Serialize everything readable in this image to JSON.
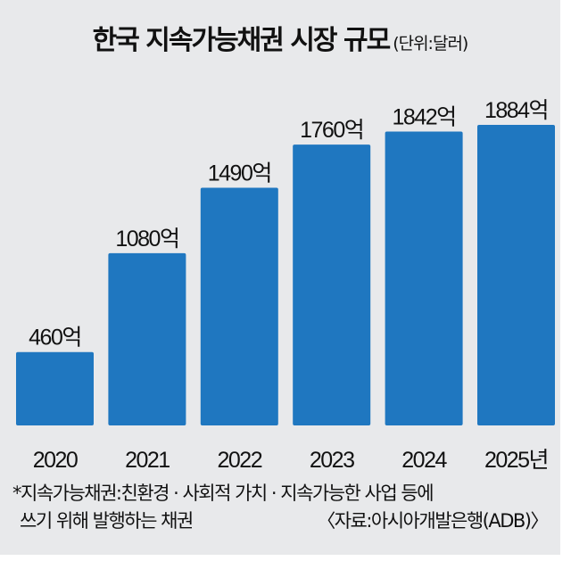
{
  "chart_data": {
    "type": "bar",
    "title": "한국 지속가능채권 시장 규모",
    "unit_label": "(단위:달러)",
    "categories": [
      "2020",
      "2021",
      "2022",
      "2023",
      "2024",
      "2025년"
    ],
    "values": [
      460,
      1080,
      1490,
      1760,
      1842,
      1884
    ],
    "value_labels": [
      "460억",
      "1080억",
      "1490억",
      "1760억",
      "1842억",
      "1884억"
    ],
    "bar_color": "#1f77c0",
    "ylim": [
      0,
      2000
    ],
    "grid": false,
    "footnote_line1": "*지속가능채권:친환경 · 사회적 가치 · 지속가능한 사업 등에",
    "footnote_line2": "쓰기 위해 발행하는 채권",
    "source": "〈자료:아시아개발은행(ADB)〉"
  }
}
